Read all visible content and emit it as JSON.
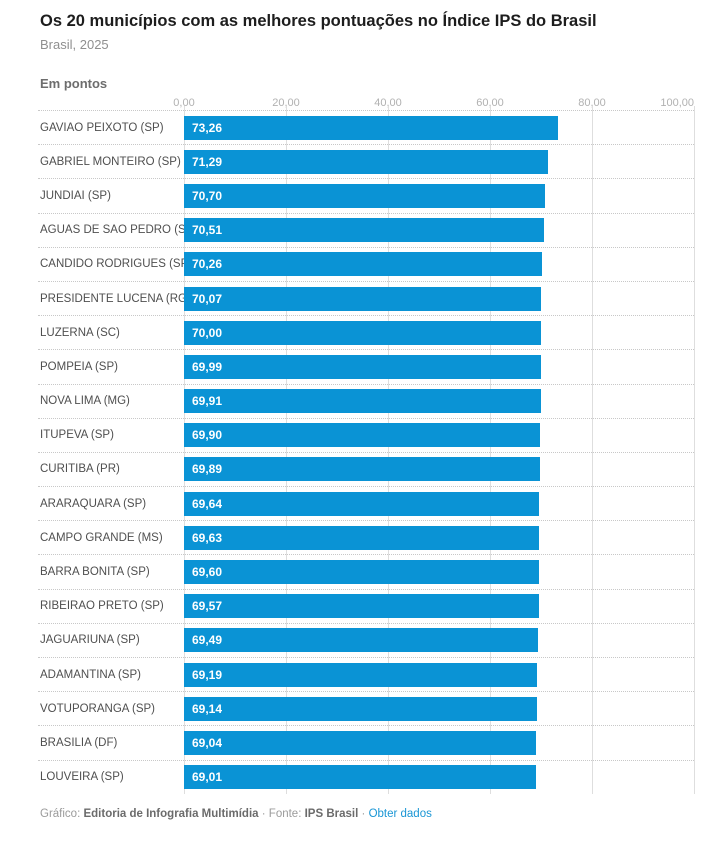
{
  "header": {
    "title": "Os 20 municípios com as melhores pontuações no Índice IPS do Brasil",
    "subtitle": "Brasil, 2025",
    "unit_label": "Em pontos"
  },
  "chart_data": {
    "type": "bar",
    "orientation": "horizontal",
    "title": "Os 20 municípios com as melhores pontuações no Índice IPS do Brasil",
    "subtitle": "Brasil, 2025",
    "unit": "Em pontos",
    "xlim": [
      0,
      100
    ],
    "x_tick_values": [
      0,
      20,
      40,
      60,
      80,
      100
    ],
    "x_tick_labels": [
      "0,00",
      "20,00",
      "40,00",
      "60,00",
      "80,00",
      "100,00"
    ],
    "grid": true,
    "legend": false,
    "bar_color": "#0a93d5",
    "value_label_color": "#ffffff",
    "rows": [
      {
        "label": "GAVIÃO PEIXOTO (SP)",
        "value": 73.26,
        "value_label": "73,26"
      },
      {
        "label": "GABRIEL MONTEIRO (SP)",
        "value": 71.29,
        "value_label": "71,29"
      },
      {
        "label": "JUNDIAÍ (SP)",
        "value": 70.7,
        "value_label": "70,70"
      },
      {
        "label": "ÁGUAS DE SÃO PEDRO (SP)",
        "value": 70.51,
        "value_label": "70,51"
      },
      {
        "label": "CÂNDIDO RODRIGUES (SP)",
        "value": 70.26,
        "value_label": "70,26"
      },
      {
        "label": "PRESIDENTE LUCENA (RGS)",
        "value": 70.07,
        "value_label": "70,07"
      },
      {
        "label": "LUZERNA (SC)",
        "value": 70.0,
        "value_label": "70,00"
      },
      {
        "label": "POMPÉIA (SP)",
        "value": 69.99,
        "value_label": "69,99"
      },
      {
        "label": "NOVA LIMA (MG)",
        "value": 69.91,
        "value_label": "69,91"
      },
      {
        "label": "ITUPEVA (SP)",
        "value": 69.9,
        "value_label": "69,90"
      },
      {
        "label": "CURITIBA (PR)",
        "value": 69.89,
        "value_label": "69,89"
      },
      {
        "label": "ARARAQUARA (SP)",
        "value": 69.64,
        "value_label": "69,64"
      },
      {
        "label": "CAMPO GRANDE (MS)",
        "value": 69.63,
        "value_label": "69,63"
      },
      {
        "label": "BARRA BONITA (SP)",
        "value": 69.6,
        "value_label": "69,60"
      },
      {
        "label": "RIBEIRÃO PRETO (SP)",
        "value": 69.57,
        "value_label": "69,57"
      },
      {
        "label": "JAGUARIUNA (SP)",
        "value": 69.49,
        "value_label": "69,49"
      },
      {
        "label": "ADAMANTINA (SP)",
        "value": 69.19,
        "value_label": "69,19"
      },
      {
        "label": "VOTUPORANGA (SP)",
        "value": 69.14,
        "value_label": "69,14"
      },
      {
        "label": "BRASÍLIA (DF)",
        "value": 69.04,
        "value_label": "69,04"
      },
      {
        "label": "LOUVEIRA (SP)",
        "value": 69.01,
        "value_label": "69,01"
      }
    ]
  },
  "footer": {
    "graphic_label": "Gráfico:",
    "credit": "Editoria de Infografia Multimídia",
    "separator": "·",
    "source_label": "Fonte:",
    "source": "IPS Brasil",
    "link_label": "Obter dados",
    "link_color": "#1a96d5"
  }
}
